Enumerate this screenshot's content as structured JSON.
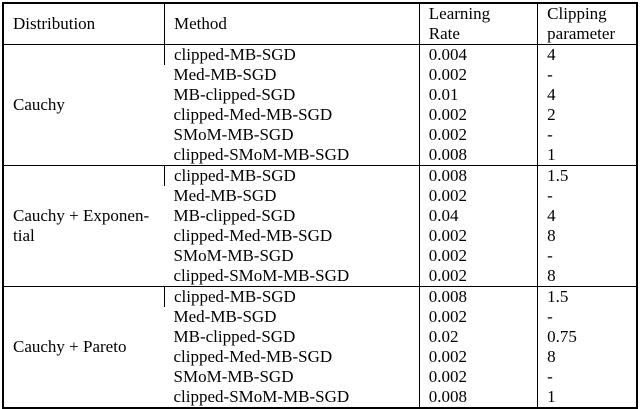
{
  "table": {
    "title": "hyperparameters-table",
    "headers": {
      "distribution": "Distribution",
      "method": "Method",
      "learning_rate": "Learning\nRate",
      "clipping": "Clipping\nparameter"
    },
    "border_color": "#000000",
    "background_color": "#ffffff",
    "groups": [
      {
        "distribution": "Cauchy",
        "rows": [
          {
            "method": "clipped-MB-SGD",
            "learning_rate": "0.004",
            "clipping": "4"
          },
          {
            "method": "Med-MB-SGD",
            "learning_rate": "0.002",
            "clipping": "-"
          },
          {
            "method": "MB-clipped-SGD",
            "learning_rate": "0.01",
            "clipping": "4"
          },
          {
            "method": "clipped-Med-MB-SGD",
            "learning_rate": "0.002",
            "clipping": "2"
          },
          {
            "method": "SMoM-MB-SGD",
            "learning_rate": "0.002",
            "clipping": "-"
          },
          {
            "method": "clipped-SMoM-MB-SGD",
            "learning_rate": "0.008",
            "clipping": "1"
          }
        ]
      },
      {
        "distribution": "Cauchy + Exponen-\ntial",
        "rows": [
          {
            "method": "clipped-MB-SGD",
            "learning_rate": "0.008",
            "clipping": "1.5"
          },
          {
            "method": "Med-MB-SGD",
            "learning_rate": "0.002",
            "clipping": "-"
          },
          {
            "method": "MB-clipped-SGD",
            "learning_rate": "0.04",
            "clipping": "4"
          },
          {
            "method": "clipped-Med-MB-SGD",
            "learning_rate": "0.002",
            "clipping": "8"
          },
          {
            "method": "SMoM-MB-SGD",
            "learning_rate": "0.002",
            "clipping": "-"
          },
          {
            "method": "clipped-SMoM-MB-SGD",
            "learning_rate": "0.002",
            "clipping": "8"
          }
        ]
      },
      {
        "distribution": "Cauchy + Pareto",
        "rows": [
          {
            "method": "clipped-MB-SGD",
            "learning_rate": "0.008",
            "clipping": "1.5"
          },
          {
            "method": "Med-MB-SGD",
            "learning_rate": "0.002",
            "clipping": "-"
          },
          {
            "method": "MB-clipped-SGD",
            "learning_rate": "0.02",
            "clipping": "0.75"
          },
          {
            "method": "clipped-Med-MB-SGD",
            "learning_rate": "0.002",
            "clipping": "8"
          },
          {
            "method": "SMoM-MB-SGD",
            "learning_rate": "0.002",
            "clipping": "-"
          },
          {
            "method": "clipped-SMoM-MB-SGD",
            "learning_rate": "0.008",
            "clipping": "1"
          }
        ]
      }
    ]
  }
}
